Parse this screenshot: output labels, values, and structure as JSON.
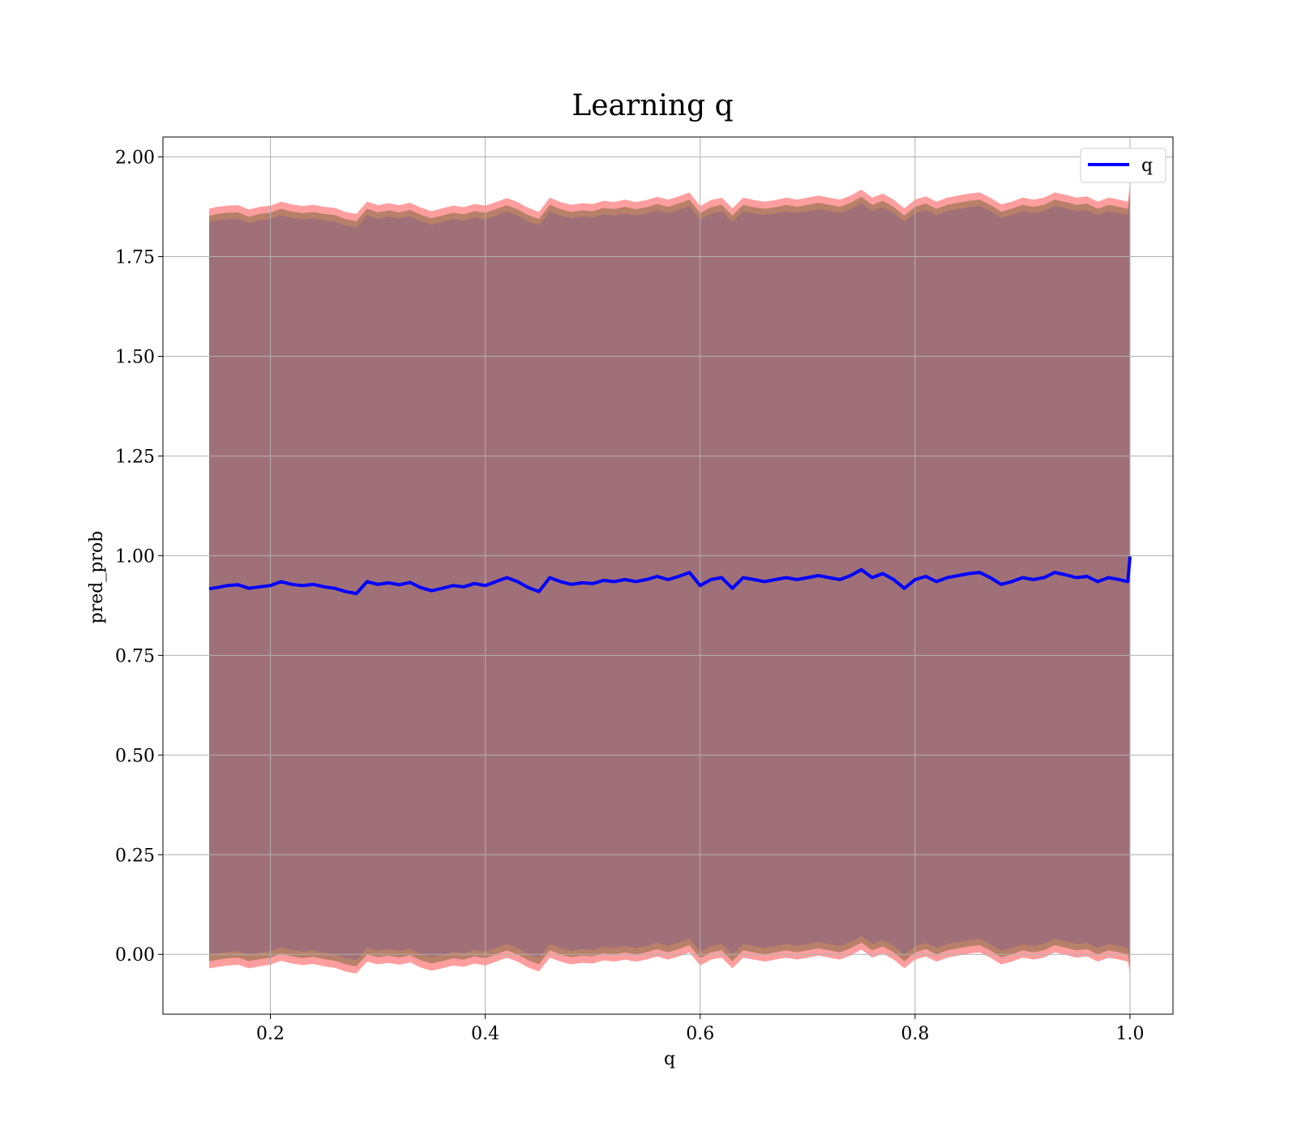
{
  "chart_data": {
    "type": "line",
    "title": "Learning q",
    "xlabel": "q",
    "ylabel": "pred_prob",
    "xlim": [
      0.1,
      1.04
    ],
    "ylim": [
      -0.15,
      2.05
    ],
    "xticks": [
      0.2,
      0.4,
      0.6,
      0.8,
      1.0
    ],
    "xtick_labels": [
      "0.2",
      "0.4",
      "0.6",
      "0.8",
      "1.0"
    ],
    "yticks": [
      0.0,
      0.25,
      0.5,
      0.75,
      1.0,
      1.25,
      1.5,
      1.75,
      2.0
    ],
    "ytick_labels": [
      "0.00",
      "0.25",
      "0.50",
      "0.75",
      "1.00",
      "1.25",
      "1.50",
      "1.75",
      "2.00"
    ],
    "grid": true,
    "legend": {
      "position": "top-right",
      "entries": [
        "q"
      ]
    },
    "colors": {
      "line": "#0000ff",
      "band_outer": "#ff9e9e",
      "band_middle": "#b88068",
      "band_inner": "#a07078",
      "grid": "#b0b0b0"
    },
    "series": [
      {
        "name": "q",
        "x": [
          0.143,
          0.15,
          0.16,
          0.17,
          0.18,
          0.19,
          0.2,
          0.21,
          0.22,
          0.23,
          0.24,
          0.25,
          0.26,
          0.27,
          0.28,
          0.29,
          0.3,
          0.31,
          0.32,
          0.33,
          0.34,
          0.35,
          0.36,
          0.37,
          0.38,
          0.39,
          0.4,
          0.41,
          0.42,
          0.43,
          0.44,
          0.45,
          0.46,
          0.47,
          0.48,
          0.49,
          0.5,
          0.51,
          0.52,
          0.53,
          0.54,
          0.55,
          0.56,
          0.57,
          0.58,
          0.59,
          0.6,
          0.61,
          0.62,
          0.63,
          0.64,
          0.65,
          0.66,
          0.67,
          0.68,
          0.69,
          0.7,
          0.71,
          0.72,
          0.73,
          0.74,
          0.75,
          0.76,
          0.77,
          0.78,
          0.79,
          0.8,
          0.81,
          0.82,
          0.83,
          0.84,
          0.85,
          0.86,
          0.87,
          0.88,
          0.89,
          0.9,
          0.91,
          0.92,
          0.93,
          0.94,
          0.95,
          0.96,
          0.97,
          0.98,
          0.99,
          0.998,
          1.0
        ],
        "values": [
          0.917,
          0.92,
          0.925,
          0.927,
          0.918,
          0.922,
          0.925,
          0.935,
          0.928,
          0.925,
          0.928,
          0.922,
          0.918,
          0.91,
          0.905,
          0.935,
          0.928,
          0.932,
          0.927,
          0.933,
          0.92,
          0.912,
          0.918,
          0.925,
          0.922,
          0.93,
          0.925,
          0.935,
          0.945,
          0.935,
          0.92,
          0.91,
          0.945,
          0.935,
          0.928,
          0.932,
          0.93,
          0.938,
          0.935,
          0.94,
          0.935,
          0.94,
          0.948,
          0.94,
          0.948,
          0.958,
          0.925,
          0.94,
          0.945,
          0.918,
          0.945,
          0.94,
          0.935,
          0.94,
          0.945,
          0.94,
          0.945,
          0.95,
          0.945,
          0.94,
          0.95,
          0.965,
          0.945,
          0.955,
          0.94,
          0.918,
          0.94,
          0.948,
          0.935,
          0.945,
          0.95,
          0.955,
          0.958,
          0.945,
          0.928,
          0.935,
          0.945,
          0.94,
          0.945,
          0.958,
          0.952,
          0.945,
          0.948,
          0.935,
          0.945,
          0.94,
          0.935,
          0.998
        ],
        "upper_outer": [
          1.87,
          1.875,
          1.878,
          1.879,
          1.868,
          1.875,
          1.878,
          1.888,
          1.881,
          1.877,
          1.88,
          1.875,
          1.872,
          1.862,
          1.857,
          1.888,
          1.879,
          1.884,
          1.879,
          1.885,
          1.873,
          1.864,
          1.871,
          1.878,
          1.874,
          1.882,
          1.878,
          1.887,
          1.897,
          1.887,
          1.872,
          1.862,
          1.898,
          1.887,
          1.88,
          1.884,
          1.882,
          1.89,
          1.887,
          1.893,
          1.887,
          1.892,
          1.9,
          1.893,
          1.901,
          1.911,
          1.877,
          1.892,
          1.898,
          1.871,
          1.898,
          1.892,
          1.888,
          1.892,
          1.898,
          1.893,
          1.898,
          1.903,
          1.898,
          1.893,
          1.903,
          1.918,
          1.898,
          1.908,
          1.893,
          1.871,
          1.893,
          1.901,
          1.888,
          1.898,
          1.903,
          1.908,
          1.911,
          1.898,
          1.881,
          1.888,
          1.898,
          1.893,
          1.898,
          1.911,
          1.905,
          1.898,
          1.901,
          1.888,
          1.898,
          1.893,
          1.888,
          1.935
        ],
        "lower_outer": [
          -0.035,
          -0.032,
          -0.028,
          -0.026,
          -0.035,
          -0.03,
          -0.026,
          -0.016,
          -0.023,
          -0.027,
          -0.024,
          -0.03,
          -0.034,
          -0.043,
          -0.048,
          -0.018,
          -0.025,
          -0.021,
          -0.026,
          -0.02,
          -0.033,
          -0.041,
          -0.035,
          -0.028,
          -0.031,
          -0.023,
          -0.028,
          -0.018,
          -0.008,
          -0.018,
          -0.033,
          -0.043,
          -0.008,
          -0.018,
          -0.025,
          -0.021,
          -0.023,
          -0.015,
          -0.018,
          -0.013,
          -0.018,
          -0.013,
          -0.005,
          -0.013,
          -0.005,
          0.005,
          -0.028,
          -0.013,
          -0.008,
          -0.035,
          -0.008,
          -0.013,
          -0.018,
          -0.013,
          -0.008,
          -0.013,
          -0.008,
          -0.003,
          -0.008,
          -0.013,
          -0.003,
          0.012,
          -0.008,
          0.002,
          -0.013,
          -0.035,
          -0.013,
          -0.005,
          -0.018,
          -0.008,
          -0.003,
          0.002,
          0.005,
          -0.008,
          -0.025,
          -0.018,
          -0.008,
          -0.013,
          -0.008,
          0.005,
          -0.001,
          -0.008,
          -0.005,
          -0.018,
          -0.008,
          -0.013,
          -0.018,
          -0.05
        ]
      }
    ]
  }
}
